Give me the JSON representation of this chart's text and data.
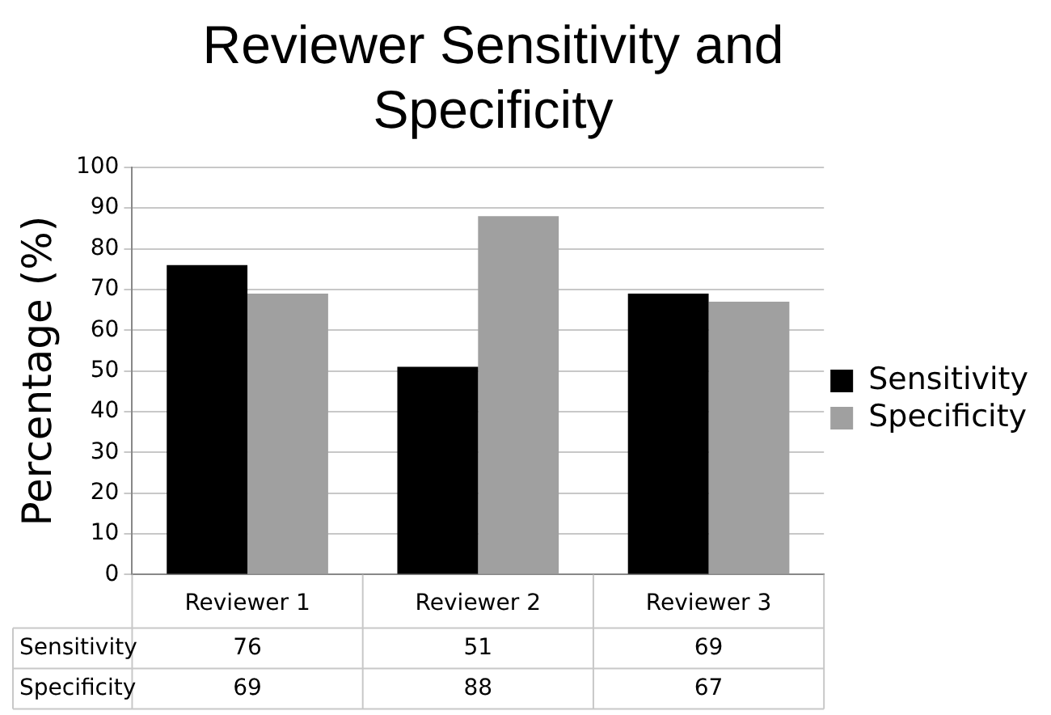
{
  "chart_data": {
    "type": "bar",
    "title": "Reviewer Sensitivity and Specificity",
    "ylabel": "Percentage (%)",
    "categories": [
      "Reviewer 1",
      "Reviewer 2",
      "Reviewer 3"
    ],
    "series": [
      {
        "name": "Sensitivity",
        "color": "#000000",
        "values": [
          76,
          51,
          69
        ]
      },
      {
        "name": "Specificity",
        "color": "#a0a0a0",
        "values": [
          69,
          88,
          67
        ]
      }
    ],
    "ylim": [
      0,
      100
    ],
    "yticks": [
      0,
      10,
      20,
      30,
      40,
      50,
      60,
      70,
      80,
      90,
      100
    ],
    "grid": "y",
    "legend": "right",
    "data_labels": true
  }
}
